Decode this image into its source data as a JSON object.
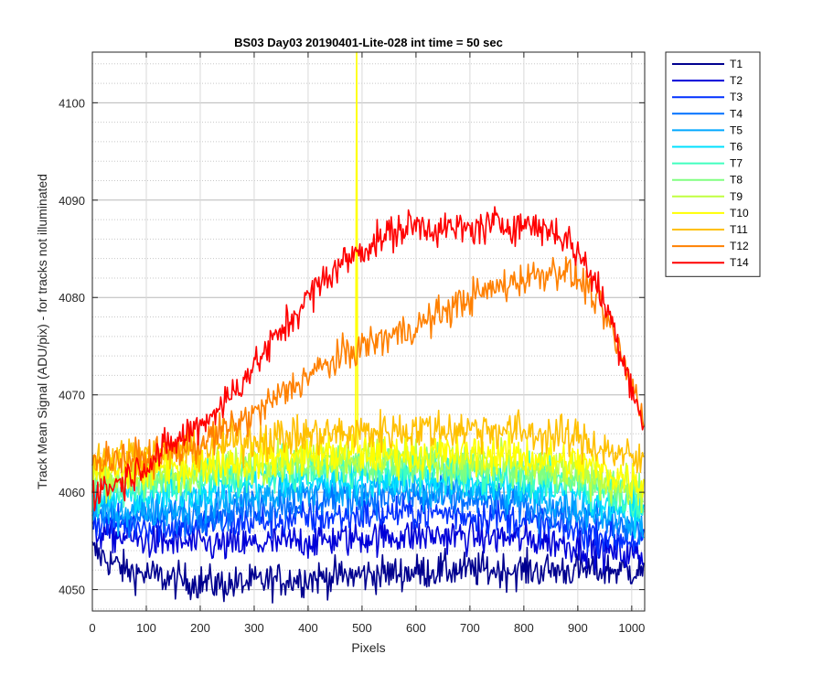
{
  "chart_data": {
    "type": "line",
    "title": "BS03 Day03 20190401-Lite-028 int time = 50 sec",
    "xlabel": "Pixels",
    "ylabel": "Track Mean Signal (ADU/pix) - for tracks not illuminated",
    "xlim": [
      0,
      1024
    ],
    "ylim": [
      4047.8,
      4105.2
    ],
    "x_ticks": [
      0,
      100,
      200,
      300,
      400,
      500,
      600,
      700,
      800,
      900,
      1000
    ],
    "y_ticks": [
      4050,
      4060,
      4070,
      4080,
      4090,
      4100
    ],
    "y_minor_step": 2,
    "grid": "major-and-minor",
    "legend_position": "outside-right",
    "series": [
      {
        "name": "T1",
        "color": "#00008f",
        "profile": [
          [
            0,
            4054
          ],
          [
            60,
            4052
          ],
          [
            150,
            4051
          ],
          [
            250,
            4050.5
          ],
          [
            350,
            4051
          ],
          [
            500,
            4051.5
          ],
          [
            650,
            4052
          ],
          [
            800,
            4052
          ],
          [
            900,
            4052
          ],
          [
            1020,
            4052
          ]
        ],
        "noise": 1.3
      },
      {
        "name": "T2",
        "color": "#0000d8",
        "profile": [
          [
            0,
            4056
          ],
          [
            100,
            4055
          ],
          [
            250,
            4054.5
          ],
          [
            400,
            4055
          ],
          [
            550,
            4055.5
          ],
          [
            700,
            4055.5
          ],
          [
            850,
            4055
          ],
          [
            950,
            4054
          ],
          [
            1020,
            4053.5
          ]
        ],
        "noise": 1.3
      },
      {
        "name": "T3",
        "color": "#0030ff",
        "profile": [
          [
            0,
            4057
          ],
          [
            150,
            4056.5
          ],
          [
            300,
            4057
          ],
          [
            450,
            4057.5
          ],
          [
            600,
            4058
          ],
          [
            750,
            4057.5
          ],
          [
            900,
            4056
          ],
          [
            1020,
            4055
          ]
        ],
        "noise": 1.3
      },
      {
        "name": "T4",
        "color": "#0070ff",
        "profile": [
          [
            0,
            4057.5
          ],
          [
            150,
            4057.5
          ],
          [
            300,
            4058.5
          ],
          [
            450,
            4059.5
          ],
          [
            600,
            4059.5
          ],
          [
            750,
            4059
          ],
          [
            900,
            4057.5
          ],
          [
            1020,
            4056
          ]
        ],
        "noise": 1.4
      },
      {
        "name": "T5",
        "color": "#00a8ff",
        "profile": [
          [
            0,
            4058
          ],
          [
            150,
            4058.5
          ],
          [
            300,
            4059.5
          ],
          [
            450,
            4060.5
          ],
          [
            600,
            4060.5
          ],
          [
            750,
            4060
          ],
          [
            900,
            4058.5
          ],
          [
            1020,
            4057
          ]
        ],
        "noise": 1.4
      },
      {
        "name": "T6",
        "color": "#00e0ff",
        "profile": [
          [
            0,
            4059
          ],
          [
            150,
            4060
          ],
          [
            300,
            4061
          ],
          [
            450,
            4061.5
          ],
          [
            600,
            4061.5
          ],
          [
            750,
            4061
          ],
          [
            900,
            4060
          ],
          [
            1020,
            4058
          ]
        ],
        "noise": 1.4
      },
      {
        "name": "T7",
        "color": "#40ffbf",
        "profile": [
          [
            0,
            4060
          ],
          [
            150,
            4061
          ],
          [
            300,
            4062
          ],
          [
            450,
            4062.5
          ],
          [
            600,
            4062.5
          ],
          [
            750,
            4062
          ],
          [
            900,
            4061
          ],
          [
            1020,
            4059
          ]
        ],
        "noise": 1.4
      },
      {
        "name": "T8",
        "color": "#80ff80",
        "profile": [
          [
            0,
            4061
          ],
          [
            150,
            4061.5
          ],
          [
            300,
            4062.5
          ],
          [
            450,
            4063
          ],
          [
            600,
            4063
          ],
          [
            750,
            4062.5
          ],
          [
            900,
            4061.5
          ],
          [
            1020,
            4060
          ]
        ],
        "noise": 1.4
      },
      {
        "name": "T9",
        "color": "#c0ff40",
        "profile": [
          [
            0,
            4061.5
          ],
          [
            150,
            4062
          ],
          [
            300,
            4063
          ],
          [
            450,
            4063.5
          ],
          [
            600,
            4063.5
          ],
          [
            750,
            4063
          ],
          [
            900,
            4062
          ],
          [
            1020,
            4060
          ]
        ],
        "noise": 1.4
      },
      {
        "name": "T10",
        "color": "#ffff00",
        "profile": [
          [
            0,
            4062
          ],
          [
            150,
            4062.5
          ],
          [
            300,
            4063.5
          ],
          [
            450,
            4064
          ],
          [
            600,
            4064
          ],
          [
            750,
            4064
          ],
          [
            900,
            4063
          ],
          [
            1020,
            4061
          ]
        ],
        "noise": 1.5,
        "spike": {
          "x": 490,
          "y": 4105.2
        }
      },
      {
        "name": "T11",
        "color": "#ffc000",
        "profile": [
          [
            0,
            4063.5
          ],
          [
            150,
            4064
          ],
          [
            300,
            4065.5
          ],
          [
            450,
            4066
          ],
          [
            600,
            4066.5
          ],
          [
            750,
            4066.5
          ],
          [
            900,
            4065.5
          ],
          [
            1020,
            4063
          ]
        ],
        "noise": 1.5
      },
      {
        "name": "T12",
        "color": "#ff8000",
        "profile": [
          [
            0,
            4063.5
          ],
          [
            100,
            4063.5
          ],
          [
            200,
            4065
          ],
          [
            300,
            4068
          ],
          [
            400,
            4072
          ],
          [
            500,
            4075
          ],
          [
            600,
            4077
          ],
          [
            700,
            4080
          ],
          [
            800,
            4082
          ],
          [
            870,
            4083
          ],
          [
            920,
            4081
          ],
          [
            960,
            4077
          ],
          [
            1000,
            4071
          ],
          [
            1020,
            4068
          ]
        ],
        "noise": 1.3
      },
      {
        "name": "T14",
        "color": "#ff0000",
        "profile": [
          [
            0,
            4060
          ],
          [
            50,
            4061
          ],
          [
            100,
            4063
          ],
          [
            200,
            4067
          ],
          [
            250,
            4069.5
          ],
          [
            300,
            4073
          ],
          [
            350,
            4076.5
          ],
          [
            400,
            4080
          ],
          [
            450,
            4083
          ],
          [
            500,
            4085
          ],
          [
            550,
            4086.5
          ],
          [
            600,
            4087.5
          ],
          [
            650,
            4087
          ],
          [
            700,
            4087
          ],
          [
            750,
            4087.5
          ],
          [
            800,
            4087.5
          ],
          [
            850,
            4087
          ],
          [
            880,
            4086
          ],
          [
            920,
            4083
          ],
          [
            960,
            4078
          ],
          [
            1000,
            4071
          ],
          [
            1020,
            4067
          ]
        ],
        "noise": 1.3
      }
    ]
  }
}
